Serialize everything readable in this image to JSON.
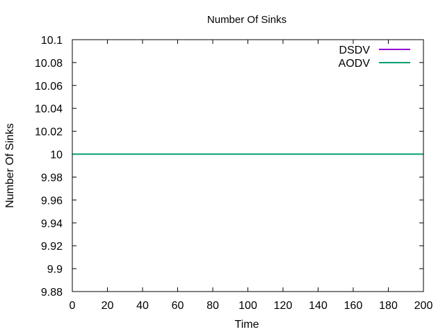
{
  "chart_data": {
    "type": "line",
    "title": "Number Of Sinks",
    "xlabel": "Time",
    "ylabel": "Number Of Sinks",
    "xlim": [
      0,
      200
    ],
    "ylim": [
      9.88,
      10.1
    ],
    "xticks": [
      "0",
      "20",
      "40",
      "60",
      "80",
      "100",
      "120",
      "140",
      "160",
      "180",
      "200"
    ],
    "yticks": [
      "9.88",
      "9.9",
      "9.92",
      "9.94",
      "9.96",
      "9.98",
      "10",
      "10.02",
      "10.04",
      "10.06",
      "10.08",
      "10.1"
    ],
    "grid": false,
    "legend_position": "top-right",
    "series": [
      {
        "name": "DSDV",
        "color": "#9400d3",
        "x": [
          0,
          200
        ],
        "y": [
          10,
          10
        ]
      },
      {
        "name": "AODV",
        "color": "#009e73",
        "x": [
          0,
          200
        ],
        "y": [
          10,
          10
        ]
      }
    ]
  }
}
